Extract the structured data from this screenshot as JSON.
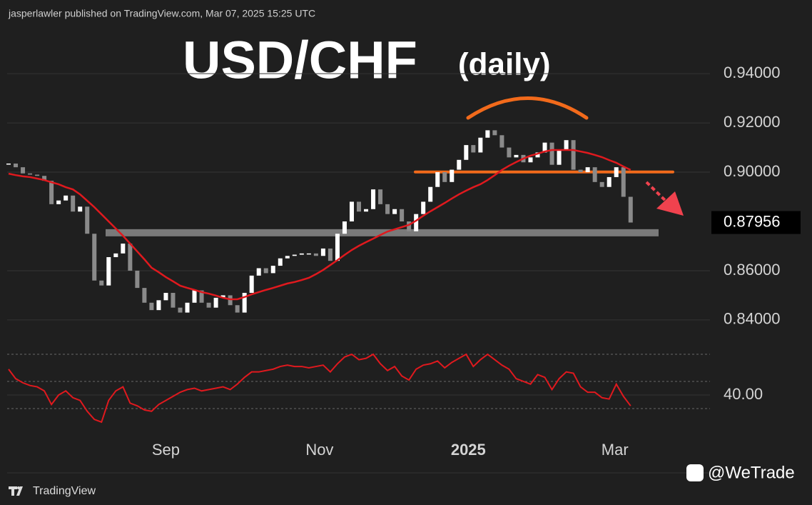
{
  "header": {
    "publisher": "jasperlawler published on TradingView.com, Mar 07, 2025 15:25 UTC"
  },
  "footer": {
    "brand": "TradingView",
    "handle": "@WeTrade"
  },
  "chart_data": {
    "type": "candlestick",
    "title": "USD/CHF",
    "subtitle": "(daily)",
    "close": [
      0.9035,
      0.902,
      0.8995,
      0.899,
      0.8985,
      0.8965,
      0.887,
      0.8885,
      0.8905,
      0.884,
      0.886,
      0.875,
      0.856,
      0.854,
      0.8655,
      0.867,
      0.871,
      0.86,
      0.853,
      0.847,
      0.844,
      0.848,
      0.851,
      0.845,
      0.843,
      0.847,
      0.852,
      0.847,
      0.845,
      0.849,
      0.85,
      0.846,
      0.843,
      0.851,
      0.858,
      0.861,
      0.859,
      0.862,
      0.865,
      0.866,
      0.8665,
      0.867,
      0.867,
      0.866,
      0.869,
      0.864,
      0.875,
      0.88,
      0.888,
      0.884,
      0.885,
      0.893,
      0.887,
      0.883,
      0.885,
      0.88,
      0.876,
      0.883,
      0.888,
      0.894,
      0.9,
      0.896,
      0.901,
      0.905,
      0.911,
      0.908,
      0.914,
      0.917,
      0.915,
      0.91,
      0.906,
      0.907,
      0.904,
      0.906,
      0.908,
      0.912,
      0.903,
      0.909,
      0.913,
      0.901,
      0.9,
      0.902,
      0.896,
      0.894,
      0.898,
      0.902,
      0.89,
      0.87956
    ],
    "up_color": "#ffffff",
    "down_color": "#8a8a8a",
    "ma_values": [
      0.8994,
      0.8988,
      0.8983,
      0.898,
      0.8974,
      0.8968,
      0.8959,
      0.8951,
      0.8939,
      0.893,
      0.891,
      0.8884,
      0.8858,
      0.8829,
      0.88,
      0.8771,
      0.8742,
      0.871,
      0.8678,
      0.8646,
      0.8612,
      0.8594,
      0.8574,
      0.8557,
      0.8539,
      0.853,
      0.8522,
      0.8513,
      0.8507,
      0.8499,
      0.849,
      0.8484,
      0.8484,
      0.8493,
      0.8504,
      0.8513,
      0.8522,
      0.853,
      0.8539,
      0.8548,
      0.8554,
      0.8562,
      0.8571,
      0.8586,
      0.8603,
      0.8623,
      0.8643,
      0.8664,
      0.8684,
      0.8701,
      0.8716,
      0.873,
      0.8745,
      0.8759,
      0.8768,
      0.8777,
      0.8786,
      0.8803,
      0.8823,
      0.8841,
      0.8858,
      0.8875,
      0.8893,
      0.891,
      0.8925,
      0.8939,
      0.8951,
      0.8968,
      0.8988,
      0.9009,
      0.9026,
      0.9041,
      0.9055,
      0.9067,
      0.9075,
      0.9084,
      0.909,
      0.909,
      0.909,
      0.909,
      0.9084,
      0.9078,
      0.907,
      0.9061,
      0.9049,
      0.9038,
      0.9023,
      0.9009
    ],
    "ma_color": "#e0191e",
    "support_level": 0.8754,
    "support_color": "#7a7a7a",
    "resistance_level": 0.9001,
    "resistance_color": "#f26a1b",
    "xlim": [
      -0.2,
      98.1
    ],
    "xticks": [
      {
        "value": 22,
        "label": "Sep"
      },
      {
        "value": 43.5,
        "label": "Nov"
      },
      {
        "value": 64.3,
        "label": "2025"
      },
      {
        "value": 84.8,
        "label": "Mar"
      }
    ],
    "ylim": [
      0.8307,
      0.9583
    ],
    "yticks": [
      {
        "value": 0.84,
        "label": "0.84000"
      },
      {
        "value": 0.86,
        "label": "0.86000"
      },
      {
        "value": 0.9,
        "label": "0.90000"
      },
      {
        "value": 0.92,
        "label": "0.92000"
      },
      {
        "value": 0.94,
        "label": "0.94000"
      }
    ],
    "grid": true,
    "rsi": {
      "values": [
        59,
        52,
        49,
        47,
        46,
        43,
        33,
        40,
        43,
        38,
        36,
        28,
        22,
        20,
        36,
        43,
        46,
        34,
        32,
        29,
        28,
        33,
        36,
        39,
        42,
        44,
        45,
        43,
        44,
        45,
        46,
        44,
        48,
        53,
        57,
        57,
        58,
        59,
        61,
        62,
        61,
        61,
        60,
        61,
        62,
        57,
        63,
        68,
        70,
        66,
        67,
        70,
        63,
        58,
        61,
        54,
        51,
        59,
        62,
        63,
        65,
        60,
        64,
        67,
        70,
        61,
        66,
        70,
        66,
        62,
        59,
        52,
        50,
        48,
        55,
        53,
        44,
        52,
        57,
        56,
        46,
        42,
        42,
        38,
        37,
        48,
        39,
        32
      ],
      "color": "#e0191e",
      "ylim": [
        10,
        78.4
      ],
      "yticks": [
        {
          "value": 40,
          "label": "40.00"
        }
      ],
      "levels": [
        30,
        50,
        70
      ]
    }
  }
}
